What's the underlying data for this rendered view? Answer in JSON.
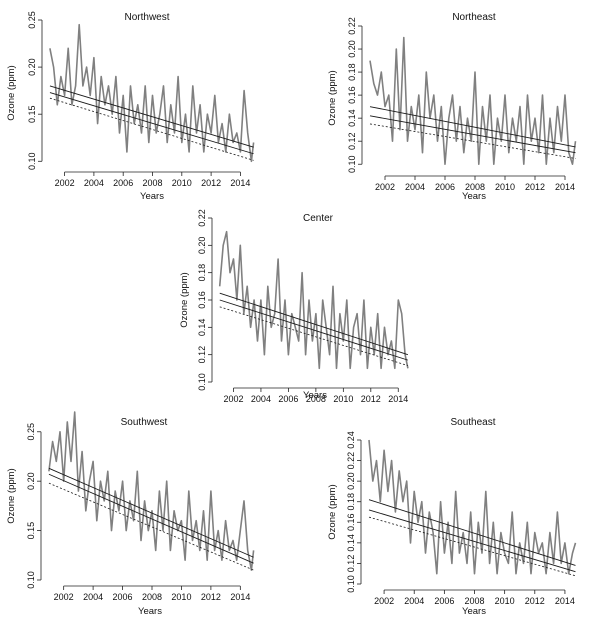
{
  "colors": {
    "series": "#808080",
    "trend": "#1a1a1a",
    "axis": "#222222",
    "background": "#ffffff"
  },
  "chart_data": [
    {
      "type": "line",
      "title": "Northwest",
      "xlabel": "Years",
      "ylabel": "Ozone (ppm)",
      "xlim": [
        2000.8,
        2015.2
      ],
      "ylim": [
        0.095,
        0.25
      ],
      "x_ticks": [
        2002,
        2004,
        2006,
        2008,
        2010,
        2012,
        2014
      ],
      "y_ticks": [
        "0.10",
        "0.15",
        "0.20",
        "0.25"
      ],
      "legend": "none",
      "grid": false,
      "series": [
        {
          "x": [
            2001.0,
            2001.25,
            2001.5,
            2001.75,
            2002.0,
            2002.25,
            2002.5,
            2002.75,
            2003.0,
            2003.25,
            2003.5,
            2003.75,
            2004.0,
            2004.25,
            2004.5,
            2004.75,
            2005.0,
            2005.25,
            2005.5,
            2005.75,
            2006.0,
            2006.25,
            2006.5,
            2006.75,
            2007.0,
            2007.25,
            2007.5,
            2007.75,
            2008.0,
            2008.25,
            2008.5,
            2008.75,
            2009.0,
            2009.25,
            2009.5,
            2009.75,
            2010.0,
            2010.25,
            2010.5,
            2010.75,
            2011.0,
            2011.25,
            2011.5,
            2011.75,
            2012.0,
            2012.25,
            2012.5,
            2012.75,
            2013.0,
            2013.25,
            2013.5,
            2013.75,
            2014.0,
            2014.25,
            2014.5,
            2014.75,
            2014.9
          ],
          "values": [
            0.22,
            0.2,
            0.16,
            0.19,
            0.17,
            0.22,
            0.16,
            0.18,
            0.245,
            0.18,
            0.2,
            0.17,
            0.21,
            0.14,
            0.19,
            0.16,
            0.18,
            0.15,
            0.19,
            0.13,
            0.17,
            0.11,
            0.18,
            0.14,
            0.16,
            0.13,
            0.18,
            0.12,
            0.17,
            0.13,
            0.15,
            0.18,
            0.12,
            0.16,
            0.13,
            0.19,
            0.12,
            0.15,
            0.11,
            0.18,
            0.13,
            0.16,
            0.11,
            0.15,
            0.13,
            0.17,
            0.12,
            0.14,
            0.11,
            0.15,
            0.12,
            0.13,
            0.11,
            0.175,
            0.13,
            0.1,
            0.12
          ]
        }
      ],
      "trend": {
        "fit": [
          0.173,
          0.108
        ],
        "lower": [
          0.167,
          0.101
        ],
        "upper": [
          0.18,
          0.115
        ]
      }
    },
    {
      "type": "line",
      "title": "Northeast",
      "xlabel": "Years",
      "ylabel": "Ozone (ppm)",
      "xlim": [
        2000.8,
        2015.0
      ],
      "ylim": [
        0.095,
        0.22
      ],
      "x_ticks": [
        2002,
        2004,
        2006,
        2008,
        2010,
        2012,
        2014
      ],
      "y_ticks": [
        "0.10",
        "0.12",
        "0.14",
        "0.16",
        "0.18",
        "0.20",
        "0.22"
      ],
      "legend": "none",
      "grid": false,
      "series": [
        {
          "x": [
            2001.0,
            2001.25,
            2001.5,
            2001.75,
            2002.0,
            2002.25,
            2002.5,
            2002.75,
            2003.0,
            2003.25,
            2003.5,
            2003.75,
            2004.0,
            2004.25,
            2004.5,
            2004.75,
            2005.0,
            2005.25,
            2005.5,
            2005.75,
            2006.0,
            2006.25,
            2006.5,
            2006.75,
            2007.0,
            2007.25,
            2007.5,
            2007.75,
            2008.0,
            2008.25,
            2008.5,
            2008.75,
            2009.0,
            2009.25,
            2009.5,
            2009.75,
            2010.0,
            2010.25,
            2010.5,
            2010.75,
            2011.0,
            2011.25,
            2011.5,
            2011.75,
            2012.0,
            2012.25,
            2012.5,
            2012.75,
            2013.0,
            2013.25,
            2013.5,
            2013.75,
            2014.0,
            2014.25,
            2014.5,
            2014.7
          ],
          "values": [
            0.19,
            0.17,
            0.16,
            0.18,
            0.15,
            0.16,
            0.12,
            0.2,
            0.13,
            0.21,
            0.12,
            0.15,
            0.13,
            0.16,
            0.11,
            0.18,
            0.14,
            0.16,
            0.12,
            0.15,
            0.1,
            0.14,
            0.16,
            0.12,
            0.15,
            0.11,
            0.14,
            0.12,
            0.18,
            0.1,
            0.15,
            0.12,
            0.16,
            0.1,
            0.14,
            0.12,
            0.16,
            0.11,
            0.14,
            0.12,
            0.15,
            0.1,
            0.16,
            0.12,
            0.14,
            0.11,
            0.16,
            0.1,
            0.14,
            0.11,
            0.15,
            0.12,
            0.16,
            0.11,
            0.1,
            0.12
          ]
        }
      ],
      "trend": {
        "fit": [
          0.142,
          0.11
        ],
        "lower": [
          0.135,
          0.105
        ],
        "upper": [
          0.15,
          0.115
        ]
      }
    },
    {
      "type": "line",
      "title": "Center",
      "xlabel": "Years",
      "ylabel": "Ozone (ppm)",
      "xlim": [
        2000.8,
        2015.0
      ],
      "ylim": [
        0.1,
        0.22
      ],
      "x_ticks": [
        2002,
        2004,
        2006,
        2008,
        2010,
        2012,
        2014
      ],
      "y_ticks": [
        "0.10",
        "0.12",
        "0.14",
        "0.16",
        "0.18",
        "0.20",
        "0.22"
      ],
      "legend": "none",
      "grid": false,
      "series": [
        {
          "x": [
            2001.0,
            2001.25,
            2001.5,
            2001.75,
            2002.0,
            2002.25,
            2002.5,
            2002.75,
            2003.0,
            2003.25,
            2003.5,
            2003.75,
            2004.0,
            2004.25,
            2004.5,
            2004.75,
            2005.0,
            2005.25,
            2005.5,
            2005.75,
            2006.0,
            2006.25,
            2006.5,
            2006.75,
            2007.0,
            2007.25,
            2007.5,
            2007.75,
            2008.0,
            2008.25,
            2008.5,
            2008.75,
            2009.0,
            2009.25,
            2009.5,
            2009.75,
            2010.0,
            2010.25,
            2010.5,
            2010.75,
            2011.0,
            2011.25,
            2011.5,
            2011.75,
            2012.0,
            2012.25,
            2012.5,
            2012.75,
            2013.0,
            2013.25,
            2013.5,
            2013.75,
            2014.0,
            2014.25,
            2014.5,
            2014.7
          ],
          "values": [
            0.17,
            0.2,
            0.21,
            0.18,
            0.19,
            0.16,
            0.2,
            0.15,
            0.17,
            0.14,
            0.16,
            0.13,
            0.16,
            0.12,
            0.17,
            0.14,
            0.15,
            0.19,
            0.13,
            0.16,
            0.12,
            0.15,
            0.14,
            0.13,
            0.18,
            0.12,
            0.16,
            0.13,
            0.15,
            0.11,
            0.16,
            0.14,
            0.12,
            0.17,
            0.11,
            0.15,
            0.13,
            0.16,
            0.11,
            0.14,
            0.15,
            0.12,
            0.16,
            0.11,
            0.14,
            0.12,
            0.15,
            0.11,
            0.14,
            0.12,
            0.13,
            0.11,
            0.16,
            0.15,
            0.12,
            0.11
          ]
        }
      ],
      "trend": {
        "fit": [
          0.16,
          0.116
        ],
        "lower": [
          0.155,
          0.112
        ],
        "upper": [
          0.165,
          0.12
        ]
      }
    },
    {
      "type": "line",
      "title": "Southwest",
      "xlabel": "Years",
      "ylabel": "Ozone (ppm)",
      "xlim": [
        2000.8,
        2015.2
      ],
      "ylim": [
        0.1,
        0.27
      ],
      "x_ticks": [
        2002,
        2004,
        2006,
        2008,
        2010,
        2012,
        2014
      ],
      "y_ticks": [
        "0.10",
        "0.15",
        "0.20",
        "0.25"
      ],
      "legend": "none",
      "grid": false,
      "series": [
        {
          "x": [
            2001.0,
            2001.25,
            2001.5,
            2001.75,
            2002.0,
            2002.25,
            2002.5,
            2002.75,
            2003.0,
            2003.25,
            2003.5,
            2003.75,
            2004.0,
            2004.25,
            2004.5,
            2004.75,
            2005.0,
            2005.25,
            2005.5,
            2005.75,
            2006.0,
            2006.25,
            2006.5,
            2006.75,
            2007.0,
            2007.25,
            2007.5,
            2007.75,
            2008.0,
            2008.25,
            2008.5,
            2008.75,
            2009.0,
            2009.25,
            2009.5,
            2009.75,
            2010.0,
            2010.25,
            2010.5,
            2010.75,
            2011.0,
            2011.25,
            2011.5,
            2011.75,
            2012.0,
            2012.25,
            2012.5,
            2012.75,
            2013.0,
            2013.25,
            2013.5,
            2013.75,
            2014.0,
            2014.25,
            2014.5,
            2014.75,
            2014.9
          ],
          "values": [
            0.21,
            0.24,
            0.22,
            0.25,
            0.2,
            0.26,
            0.22,
            0.27,
            0.19,
            0.23,
            0.17,
            0.2,
            0.22,
            0.16,
            0.2,
            0.18,
            0.21,
            0.15,
            0.19,
            0.17,
            0.2,
            0.15,
            0.18,
            0.16,
            0.21,
            0.14,
            0.18,
            0.15,
            0.17,
            0.13,
            0.19,
            0.15,
            0.2,
            0.13,
            0.17,
            0.15,
            0.16,
            0.12,
            0.19,
            0.14,
            0.16,
            0.13,
            0.17,
            0.12,
            0.19,
            0.13,
            0.15,
            0.12,
            0.16,
            0.13,
            0.14,
            0.12,
            0.15,
            0.18,
            0.13,
            0.11,
            0.13
          ]
        }
      ],
      "trend": {
        "fit": [
          0.207,
          0.117
        ],
        "lower": [
          0.198,
          0.11
        ],
        "upper": [
          0.213,
          0.123
        ]
      }
    },
    {
      "type": "line",
      "title": "Southeast",
      "xlabel": "Years",
      "ylabel": "Ozone (ppm)",
      "xlim": [
        2000.8,
        2015.0
      ],
      "ylim": [
        0.1,
        0.24
      ],
      "x_ticks": [
        2002,
        2004,
        2006,
        2008,
        2010,
        2012,
        2014
      ],
      "y_ticks": [
        "0.10",
        "0.12",
        "0.14",
        "0.16",
        "0.18",
        "0.20",
        "0.22",
        "0.24"
      ],
      "legend": "none",
      "grid": false,
      "series": [
        {
          "x": [
            2001.0,
            2001.25,
            2001.5,
            2001.75,
            2002.0,
            2002.25,
            2002.5,
            2002.75,
            2003.0,
            2003.25,
            2003.5,
            2003.75,
            2004.0,
            2004.25,
            2004.5,
            2004.75,
            2005.0,
            2005.25,
            2005.5,
            2005.75,
            2006.0,
            2006.25,
            2006.5,
            2006.75,
            2007.0,
            2007.25,
            2007.5,
            2007.75,
            2008.0,
            2008.25,
            2008.5,
            2008.75,
            2009.0,
            2009.25,
            2009.5,
            2009.75,
            2010.0,
            2010.25,
            2010.5,
            2010.75,
            2011.0,
            2011.25,
            2011.5,
            2011.75,
            2012.0,
            2012.25,
            2012.5,
            2012.75,
            2013.0,
            2013.25,
            2013.5,
            2013.75,
            2014.0,
            2014.25,
            2014.5,
            2014.7
          ],
          "values": [
            0.24,
            0.2,
            0.22,
            0.18,
            0.23,
            0.19,
            0.22,
            0.17,
            0.21,
            0.18,
            0.2,
            0.14,
            0.19,
            0.16,
            0.18,
            0.13,
            0.17,
            0.15,
            0.11,
            0.18,
            0.13,
            0.16,
            0.12,
            0.19,
            0.13,
            0.15,
            0.12,
            0.17,
            0.11,
            0.16,
            0.13,
            0.19,
            0.12,
            0.16,
            0.11,
            0.15,
            0.13,
            0.12,
            0.17,
            0.11,
            0.14,
            0.12,
            0.16,
            0.11,
            0.15,
            0.13,
            0.14,
            0.11,
            0.15,
            0.12,
            0.17,
            0.12,
            0.14,
            0.11,
            0.13,
            0.14
          ]
        }
      ],
      "trend": {
        "fit": [
          0.172,
          0.112
        ],
        "lower": [
          0.165,
          0.108
        ],
        "upper": [
          0.182,
          0.118
        ]
      }
    }
  ]
}
